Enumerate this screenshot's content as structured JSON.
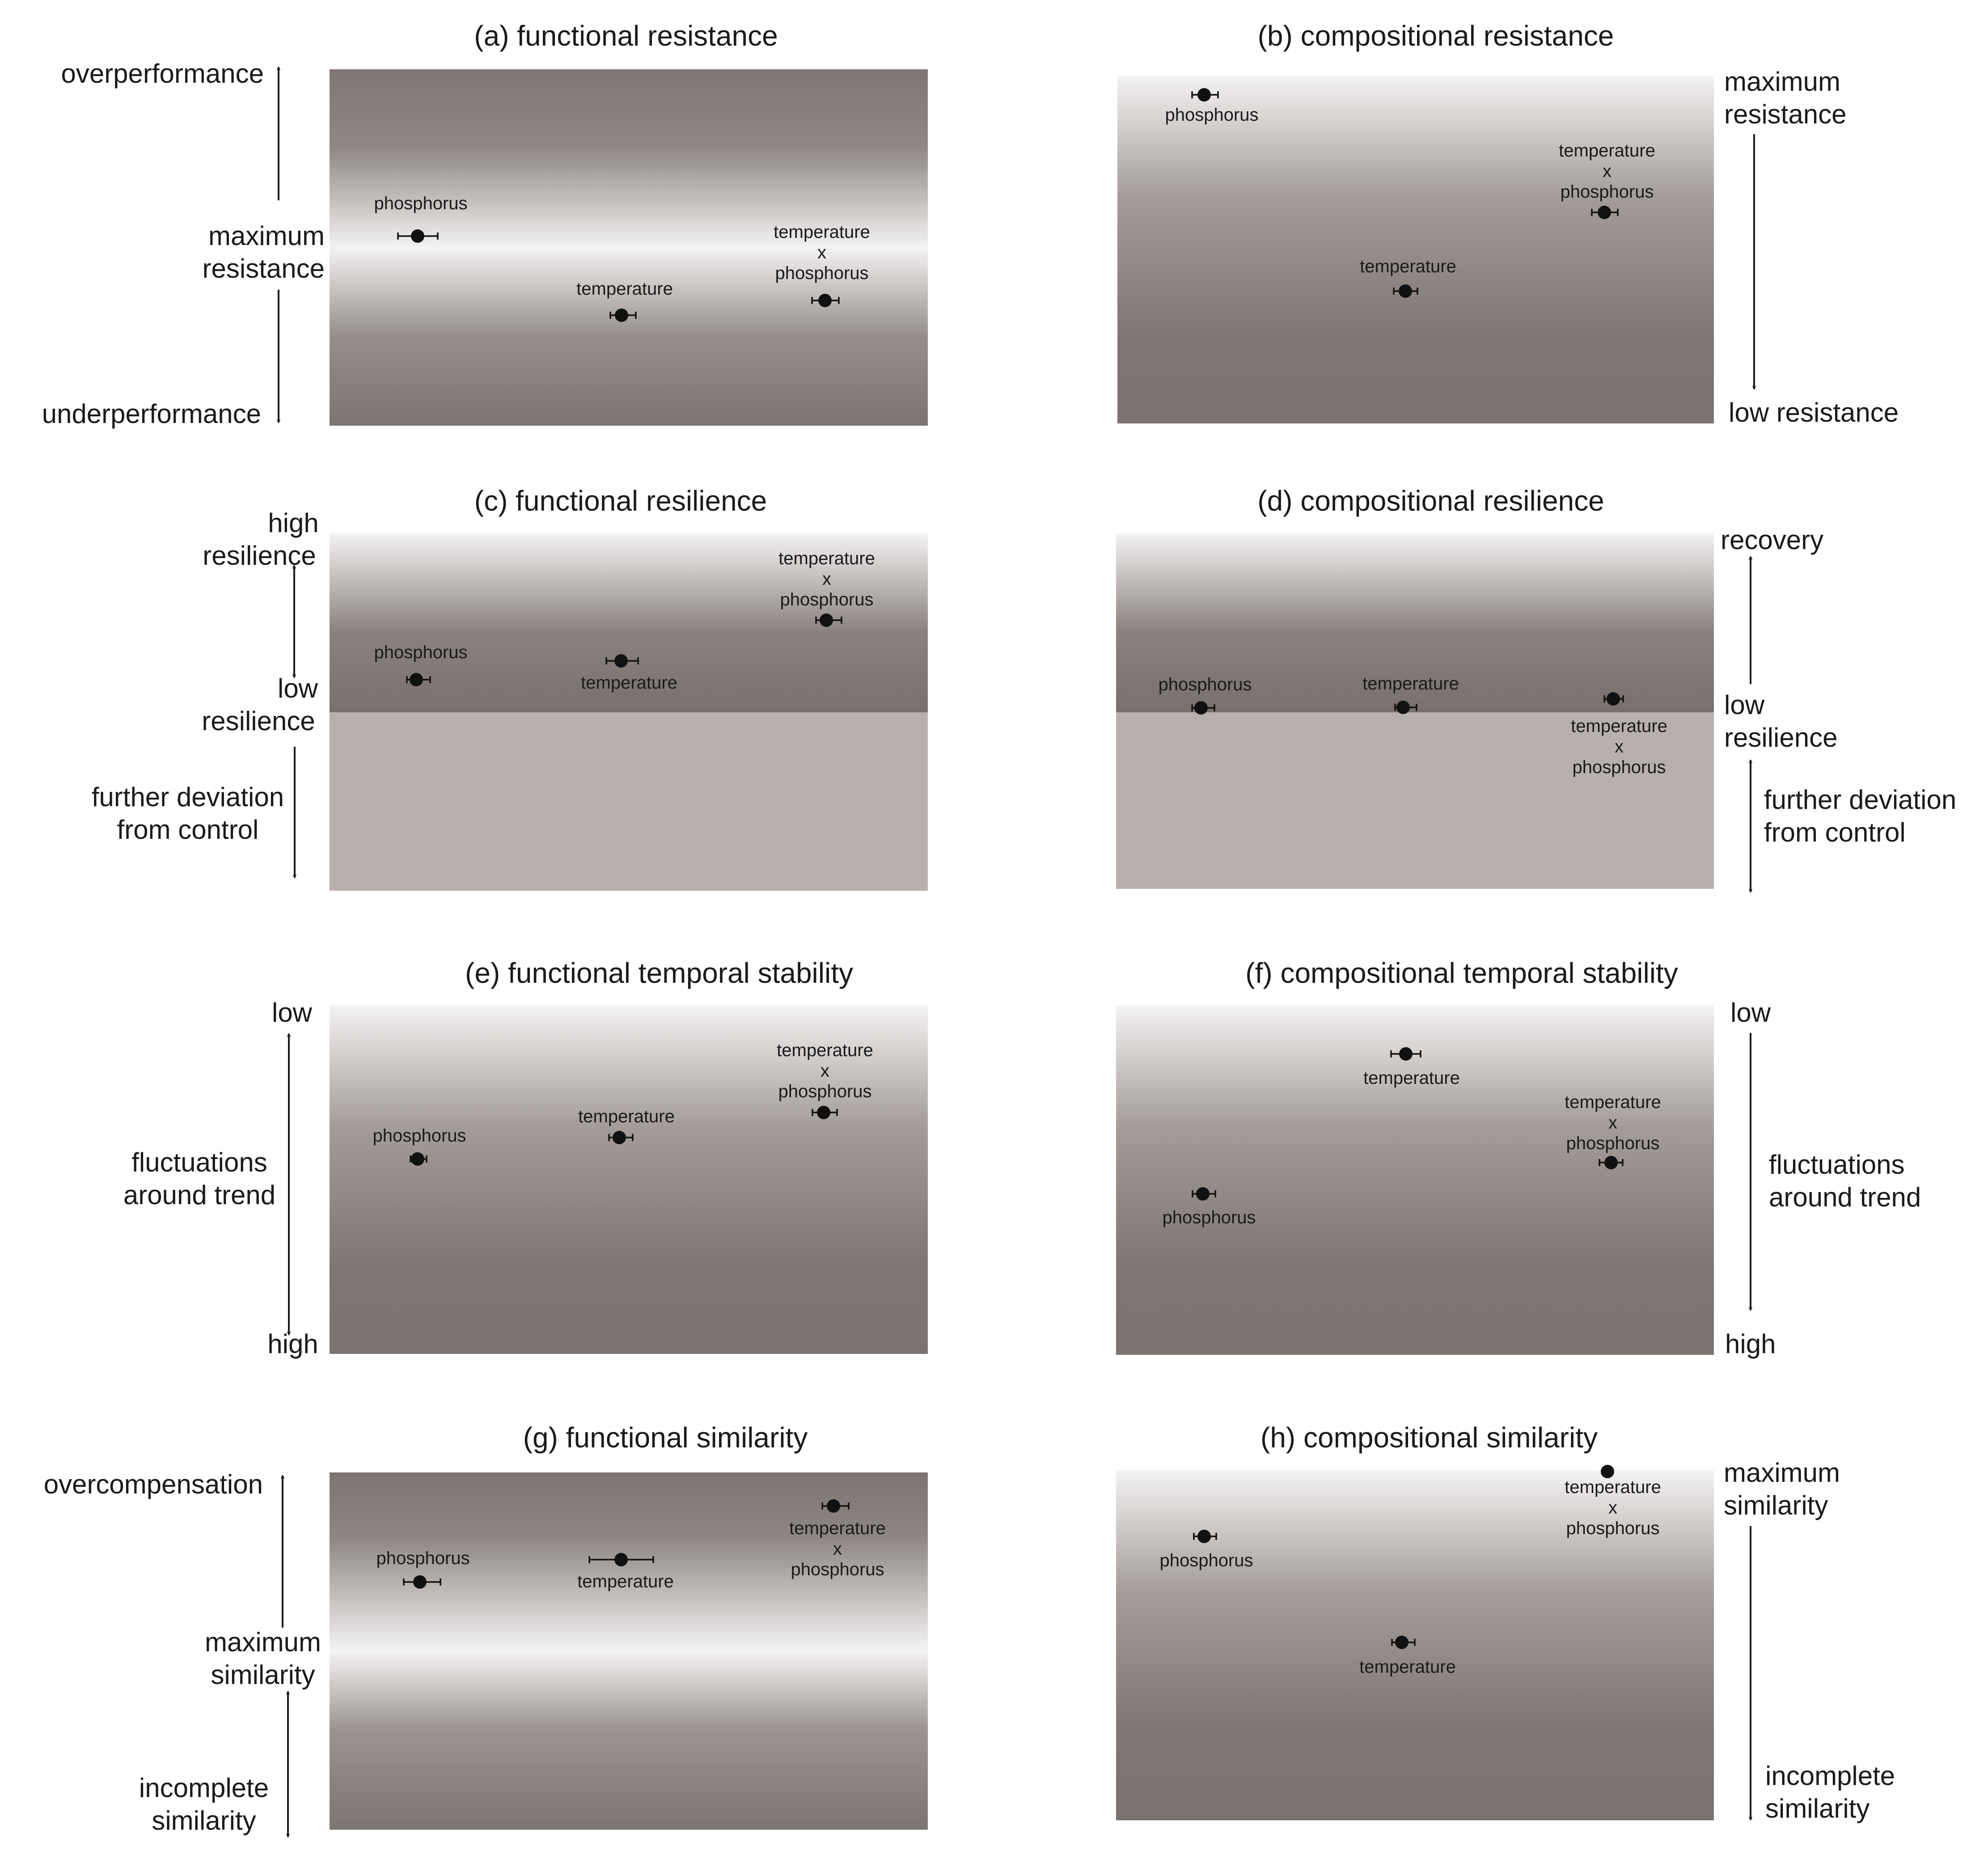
{
  "figure": {
    "colors": {
      "dark": "#7d7470",
      "light": "#f4f2f2",
      "deviation": "#b8b0ac",
      "ink": "#111111"
    },
    "labels": {
      "phosphorus": "phosphorus",
      "temperature": "temperature",
      "interaction_line1": "temperature",
      "interaction_line2": "x",
      "interaction_line3": "phosphorus"
    },
    "panels": {
      "a": {
        "title": "(a) functional resistance",
        "side_labels": [
          "overperformance",
          "maximum",
          "resistance",
          "underperformance"
        ]
      },
      "b": {
        "title": "(b) compositional resistance",
        "side_labels": [
          "maximum",
          "resistance",
          "low resistance"
        ]
      },
      "c": {
        "title": "(c) functional resilience",
        "side_labels": [
          "high",
          "resilience",
          "low",
          "resilience",
          "further deviation",
          "from control"
        ]
      },
      "d": {
        "title": "(d) compositional resilience",
        "side_labels": [
          "recovery",
          "low",
          "resilience",
          "further deviation",
          "from control"
        ]
      },
      "e": {
        "title": "(e) functional temporal stability",
        "side_labels": [
          "low",
          "fluctuations",
          "around trend",
          "high"
        ]
      },
      "f": {
        "title": "(f) compositional temporal stability",
        "side_labels": [
          "low",
          "fluctuations",
          "around trend",
          "high"
        ]
      },
      "g": {
        "title": "(g) functional similarity",
        "side_labels": [
          "overcompensation",
          "maximum",
          "similarity",
          "incomplete",
          "similarity"
        ]
      },
      "h": {
        "title": "(h) compositional similarity",
        "side_labels": [
          "maximum",
          "similarity",
          "incomplete",
          "similarity"
        ]
      }
    }
  }
}
